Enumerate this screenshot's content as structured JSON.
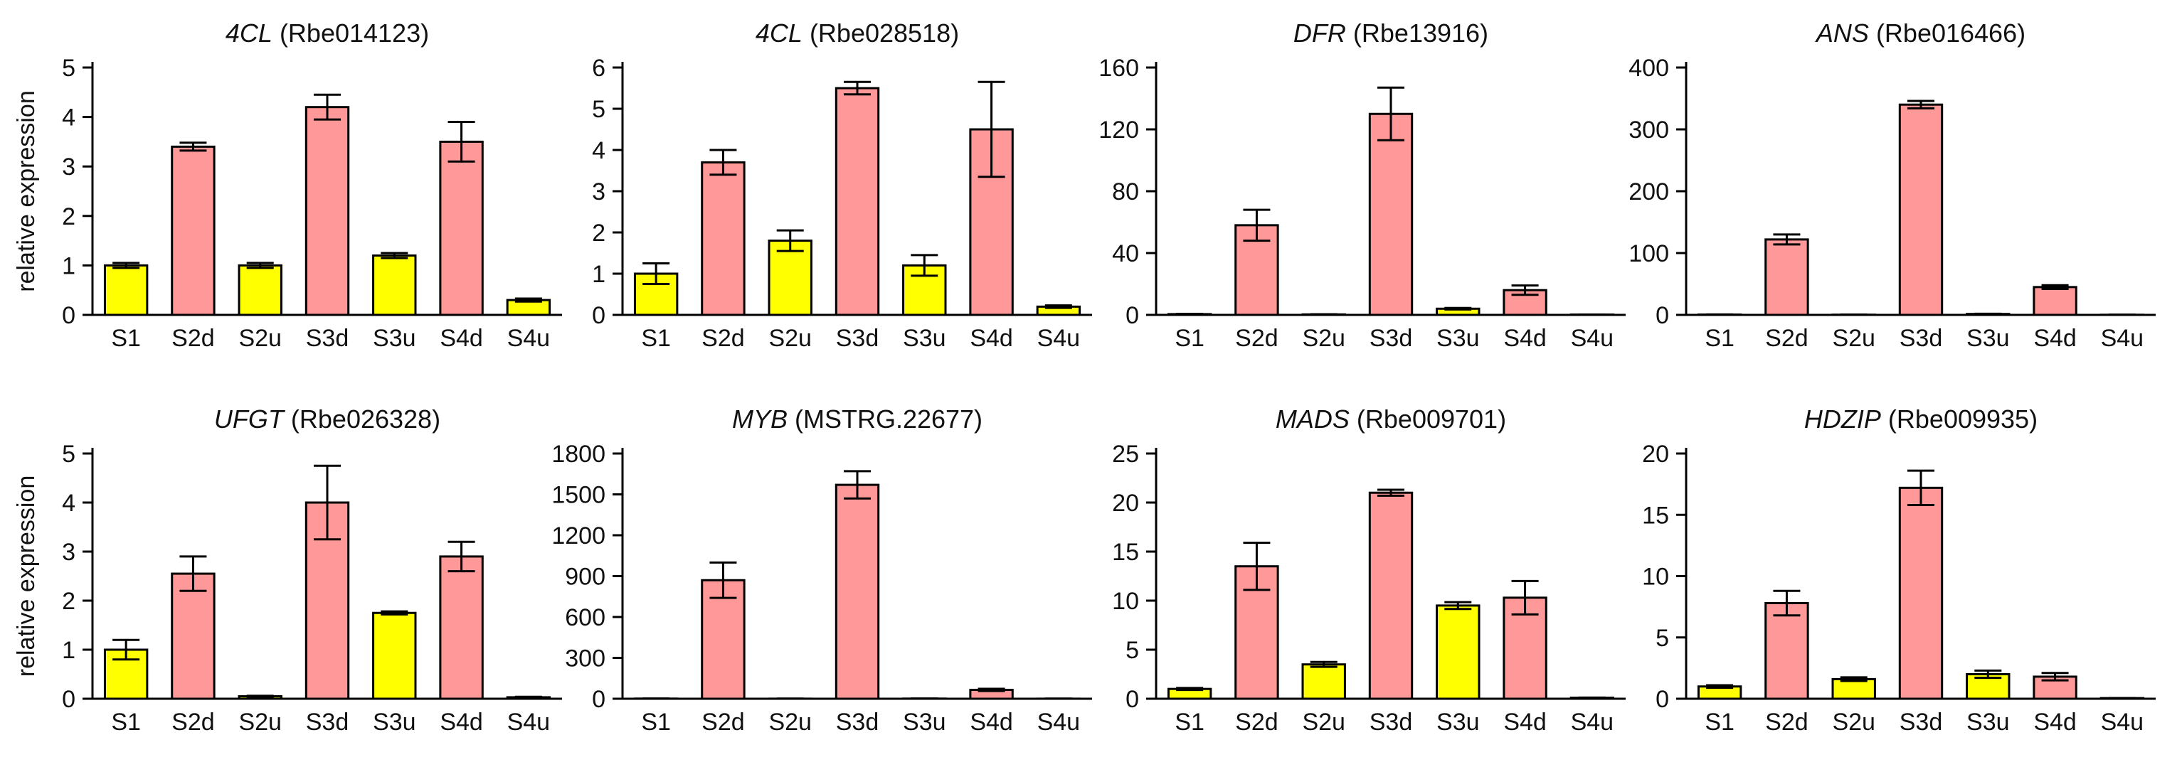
{
  "figure": {
    "ylabel": "relative expression",
    "colors": {
      "upper_sample": "#ffff00",
      "lower_sample": "#ff9999",
      "axis": "#000000"
    }
  },
  "chart_data": [
    {
      "type": "bar",
      "title_gene": "4CL",
      "title_id": "(Rbe014123)",
      "categories": [
        "S1",
        "S2d",
        "S2u",
        "S3d",
        "S3u",
        "S4d",
        "S4u"
      ],
      "values": [
        1.0,
        3.4,
        1.0,
        4.2,
        1.2,
        3.5,
        0.3
      ],
      "errors": [
        0.05,
        0.08,
        0.05,
        0.25,
        0.05,
        0.4,
        0.03
      ],
      "yticks": [
        0,
        1,
        2,
        3,
        4,
        5
      ],
      "ytick_labels": [
        "0",
        "1",
        "2",
        "3",
        "4",
        "5"
      ],
      "ylim": [
        0,
        5
      ],
      "ylabel": "relative expression"
    },
    {
      "type": "bar",
      "title_gene": "4CL",
      "title_id": "(Rbe028518)",
      "categories": [
        "S1",
        "S2d",
        "S2u",
        "S3d",
        "S3u",
        "S4d",
        "S4u"
      ],
      "values": [
        1.0,
        3.7,
        1.8,
        5.5,
        1.2,
        4.5,
        0.2
      ],
      "errors": [
        0.25,
        0.3,
        0.25,
        0.15,
        0.25,
        1.15,
        0.03
      ],
      "yticks": [
        0,
        1,
        2,
        3,
        4,
        5,
        6
      ],
      "ytick_labels": [
        "0",
        "1",
        "2",
        "3",
        "4",
        "5",
        "6"
      ],
      "ylim": [
        0,
        6
      ],
      "ylabel": ""
    },
    {
      "type": "bar",
      "title_gene": "DFR",
      "title_id": "(Rbe13916)",
      "categories": [
        "S1",
        "S2d",
        "S2u",
        "S3d",
        "S3u",
        "S4d",
        "S4u"
      ],
      "values": [
        0.5,
        58,
        0.3,
        130,
        4,
        16,
        0.2
      ],
      "errors": [
        0.2,
        10,
        0.1,
        17,
        0.5,
        3,
        0.05
      ],
      "yticks": [
        0,
        40,
        80,
        120,
        160
      ],
      "ytick_labels": [
        "0",
        "40",
        "80",
        "120",
        "160"
      ],
      "ylim": [
        0,
        160
      ],
      "ylabel": ""
    },
    {
      "type": "bar",
      "title_gene": "ANS",
      "title_id": "(Rbe016466)",
      "categories": [
        "S1",
        "S2d",
        "S2u",
        "S3d",
        "S3u",
        "S4d",
        "S4u"
      ],
      "values": [
        0.5,
        122,
        0.3,
        340,
        1.5,
        45,
        0.2
      ],
      "errors": [
        0.2,
        8,
        0.1,
        6,
        0.3,
        3,
        0.05
      ],
      "yticks": [
        0,
        100,
        200,
        300,
        400
      ],
      "ytick_labels": [
        "0",
        "100",
        "200",
        "300",
        "400"
      ],
      "ylim": [
        0,
        400
      ],
      "ylabel": ""
    },
    {
      "type": "bar",
      "title_gene": "UFGT",
      "title_id": "(Rbe026328)",
      "categories": [
        "S1",
        "S2d",
        "S2u",
        "S3d",
        "S3u",
        "S4d",
        "S4u"
      ],
      "values": [
        1.0,
        2.55,
        0.05,
        4.0,
        1.75,
        2.9,
        0.03
      ],
      "errors": [
        0.2,
        0.35,
        0.01,
        0.75,
        0.03,
        0.3,
        0.01
      ],
      "yticks": [
        0,
        1,
        2,
        3,
        4,
        5
      ],
      "ytick_labels": [
        "0",
        "1",
        "2",
        "3",
        "4",
        "5"
      ],
      "ylim": [
        0,
        5
      ],
      "ylabel": "relative expression"
    },
    {
      "type": "bar",
      "title_gene": "MYB",
      "title_id": "(MSTRG.22677)",
      "categories": [
        "S1",
        "S2d",
        "S2u",
        "S3d",
        "S3u",
        "S4d",
        "S4u"
      ],
      "values": [
        1,
        870,
        0.5,
        1570,
        1,
        65,
        0.5
      ],
      "errors": [
        0.2,
        130,
        0.1,
        100,
        0.2,
        8,
        0.1
      ],
      "yticks": [
        0,
        300,
        600,
        900,
        1200,
        1500,
        1800
      ],
      "ytick_labels": [
        "0",
        "300",
        "600",
        "900",
        "1200",
        "1500",
        "1800"
      ],
      "ylim": [
        0,
        1800
      ],
      "ylabel": ""
    },
    {
      "type": "bar",
      "title_gene": "MADS",
      "title_id": "(Rbe009701)",
      "categories": [
        "S1",
        "S2d",
        "S2u",
        "S3d",
        "S3u",
        "S4d",
        "S4u"
      ],
      "values": [
        1.0,
        13.5,
        3.5,
        21,
        9.5,
        10.3,
        0.1
      ],
      "errors": [
        0.1,
        2.4,
        0.25,
        0.3,
        0.35,
        1.7,
        0.02
      ],
      "yticks": [
        0,
        5,
        10,
        15,
        20,
        25
      ],
      "ytick_labels": [
        "0",
        "5",
        "10",
        "15",
        "20",
        "25"
      ],
      "ylim": [
        0,
        25
      ],
      "ylabel": ""
    },
    {
      "type": "bar",
      "title_gene": "HDZIP",
      "title_id": "(Rbe009935)",
      "categories": [
        "S1",
        "S2d",
        "S2u",
        "S3d",
        "S3u",
        "S4d",
        "S4u"
      ],
      "values": [
        1.0,
        7.8,
        1.6,
        17.2,
        2.0,
        1.8,
        0.05
      ],
      "errors": [
        0.1,
        1.0,
        0.15,
        1.4,
        0.3,
        0.3,
        0.01
      ],
      "yticks": [
        0,
        5,
        10,
        15,
        20
      ],
      "ytick_labels": [
        "0",
        "5",
        "10",
        "15",
        "20"
      ],
      "ylim": [
        0,
        20
      ],
      "ylabel": ""
    }
  ]
}
